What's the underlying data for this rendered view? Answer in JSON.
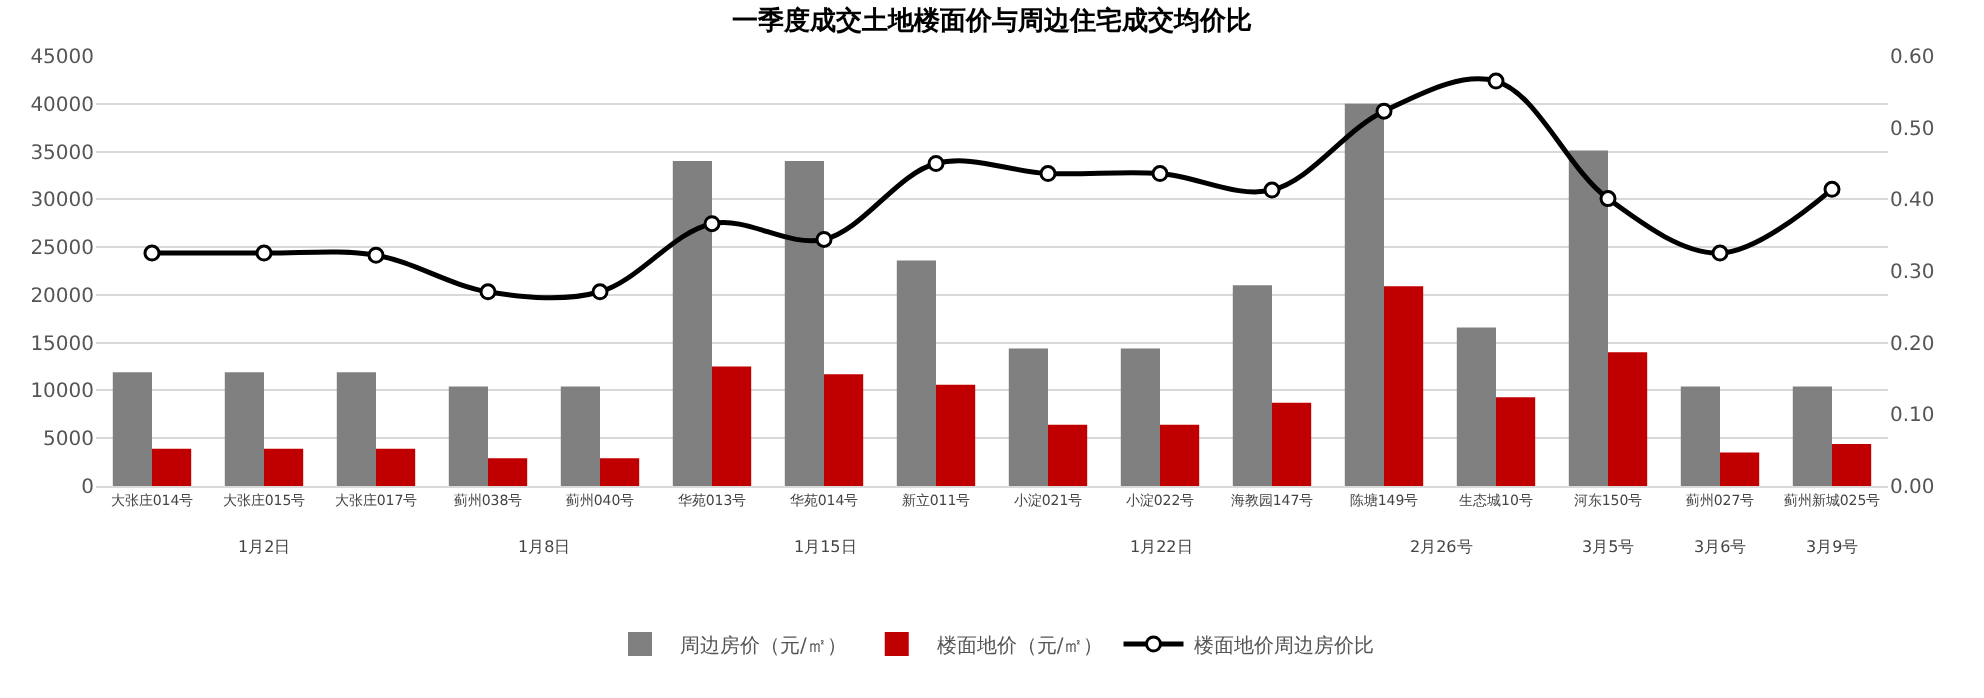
{
  "chart_data": {
    "type": "bar",
    "title": "一季度成交土地楼面价与周边住宅成交均价比",
    "categories": [
      "大张庄014号",
      "大张庄015号",
      "大张庄017号",
      "蓟州038号",
      "蓟州040号",
      "华苑013号",
      "华苑014号",
      "新立011号",
      "小淀021号",
      "小淀022号",
      "海教园147号",
      "陈塘149号",
      "生态城10号",
      "河东150号",
      "蓟州027号",
      "蓟州新城025号"
    ],
    "series": [
      {
        "name": "周边房价（元/㎡）",
        "color": "#808080",
        "values": [
          11900,
          11900,
          11900,
          10400,
          10400,
          34000,
          34000,
          23600,
          14400,
          14400,
          21000,
          40000,
          16600,
          35100,
          10400,
          10400
        ]
      },
      {
        "name": "楼面地价（元/㎡）",
        "color": "#c00000",
        "values": [
          3900,
          3900,
          3900,
          2900,
          2900,
          12500,
          11700,
          10600,
          6400,
          6400,
          8700,
          20900,
          9300,
          14000,
          3500,
          4400
        ]
      },
      {
        "name": "楼面地价周边房价比",
        "type": "line",
        "axis": "y2",
        "color": "#000000",
        "values": [
          0.325,
          0.325,
          0.322,
          0.271,
          0.271,
          0.366,
          0.344,
          0.45,
          0.436,
          0.436,
          0.413,
          0.523,
          0.565,
          0.401,
          0.325,
          0.414
        ]
      }
    ],
    "ylim": [
      0,
      45000
    ],
    "yticks": [
      0,
      5000,
      10000,
      15000,
      20000,
      25000,
      30000,
      35000,
      40000,
      45000
    ],
    "y2lim": [
      0,
      0.6
    ],
    "y2ticks": [
      {
        "value": 0,
        "label": "0.00"
      },
      {
        "value": 0.1,
        "label": "0.10"
      },
      {
        "value": 0.2,
        "label": "0.20"
      },
      {
        "value": 0.3,
        "label": "0.30"
      },
      {
        "value": 0.4,
        "label": "0.40"
      },
      {
        "value": 0.5,
        "label": "0.50"
      },
      {
        "value": 0.6,
        "label": "0.60"
      }
    ],
    "grid": "y",
    "legend": "bottom",
    "marker": "circle",
    "annotations": [
      "1月2日",
      "1月8日",
      "1月15日",
      "1月22日",
      "2月26号",
      "3月5号",
      "3月6号",
      "3月9号"
    ]
  }
}
